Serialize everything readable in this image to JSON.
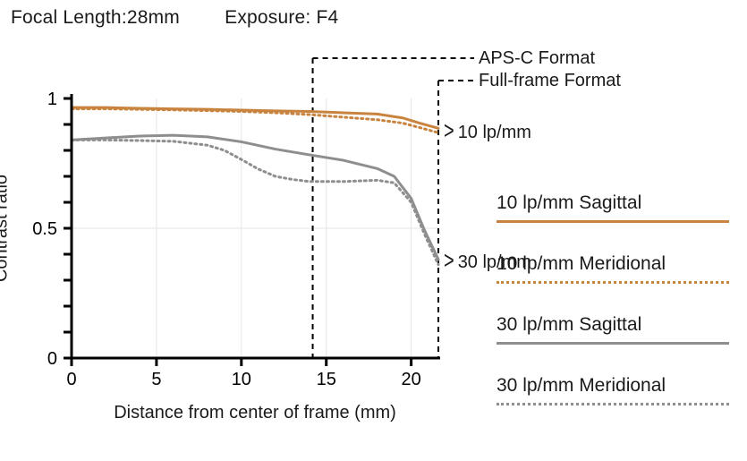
{
  "header": {
    "focal_length_label": "Focal Length:",
    "focal_length_value": "28mm",
    "exposure_label": "Exposure:",
    "exposure_value": "F4"
  },
  "chart": {
    "type": "line",
    "background_color": "#ffffff",
    "grid_color": "#e5e5e5",
    "axis_color": "#000000",
    "axis_width": 3,
    "tick_length": 9,
    "font_size_axis_labels": 20,
    "font_size_tick": 20,
    "x": {
      "label": "Distance from center of frame (mm)",
      "min": 0,
      "max": 21.6,
      "ticks": [
        0,
        5,
        10,
        15,
        20
      ],
      "grid": [
        5,
        10,
        15,
        20
      ]
    },
    "y": {
      "label": "Contrast ratio",
      "min": 0,
      "max": 1,
      "ticks": [
        0,
        0.5,
        1
      ],
      "minor_ticks": [
        0.1,
        0.2,
        0.3,
        0.4,
        0.6,
        0.7,
        0.8,
        0.9
      ]
    },
    "format_markers": {
      "apsc": {
        "x": 14.2,
        "label": "APS-C Format",
        "dash": "6,5",
        "color": "#000000"
      },
      "fullframe": {
        "x": 21.6,
        "label": "Full-frame Format",
        "dash": "6,5",
        "color": "#000000"
      }
    },
    "annotations": {
      "ten": {
        "label": "10 lp/mm",
        "at_x": 21.6,
        "at_y": 0.87,
        "arrow": ">"
      },
      "thirty": {
        "label": "30 lp/mm",
        "at_x": 21.6,
        "at_y": 0.37,
        "arrow": ">"
      }
    },
    "series": [
      {
        "id": "10_sagittal",
        "label": "10 lp/mm Sagittal",
        "color": "#c8843f",
        "width": 3,
        "dash": null,
        "data": [
          [
            0,
            0.965
          ],
          [
            2,
            0.965
          ],
          [
            4,
            0.962
          ],
          [
            6,
            0.96
          ],
          [
            8,
            0.958
          ],
          [
            10,
            0.955
          ],
          [
            12,
            0.952
          ],
          [
            14,
            0.95
          ],
          [
            16,
            0.945
          ],
          [
            18,
            0.94
          ],
          [
            19.5,
            0.925
          ],
          [
            20.5,
            0.905
          ],
          [
            21.6,
            0.885
          ]
        ]
      },
      {
        "id": "10_meridional",
        "label": "10 lp/mm Meridional",
        "color": "#c8843f",
        "width": 3,
        "dash": "2,4",
        "data": [
          [
            0,
            0.96
          ],
          [
            2,
            0.96
          ],
          [
            4,
            0.958
          ],
          [
            6,
            0.956
          ],
          [
            8,
            0.953
          ],
          [
            10,
            0.95
          ],
          [
            12,
            0.945
          ],
          [
            14,
            0.938
          ],
          [
            16,
            0.928
          ],
          [
            18,
            0.918
          ],
          [
            19.5,
            0.905
          ],
          [
            20.5,
            0.888
          ],
          [
            21.6,
            0.868
          ]
        ]
      },
      {
        "id": "30_sagittal",
        "label": "30 lp/mm Sagittal",
        "color": "#8e8e8e",
        "width": 3,
        "dash": null,
        "data": [
          [
            0,
            0.84
          ],
          [
            2,
            0.848
          ],
          [
            4,
            0.855
          ],
          [
            6,
            0.858
          ],
          [
            8,
            0.852
          ],
          [
            10,
            0.833
          ],
          [
            12,
            0.805
          ],
          [
            14,
            0.783
          ],
          [
            16,
            0.762
          ],
          [
            18,
            0.73
          ],
          [
            19,
            0.7
          ],
          [
            20,
            0.615
          ],
          [
            20.8,
            0.49
          ],
          [
            21.6,
            0.38
          ]
        ]
      },
      {
        "id": "30_meridional",
        "label": "30 lp/mm Meridional",
        "color": "#8e8e8e",
        "width": 3,
        "dash": "2,4",
        "data": [
          [
            0,
            0.84
          ],
          [
            2,
            0.84
          ],
          [
            4,
            0.838
          ],
          [
            6,
            0.835
          ],
          [
            8,
            0.82
          ],
          [
            9,
            0.8
          ],
          [
            10,
            0.765
          ],
          [
            11,
            0.728
          ],
          [
            12,
            0.7
          ],
          [
            13,
            0.688
          ],
          [
            14,
            0.68
          ],
          [
            16,
            0.68
          ],
          [
            18,
            0.685
          ],
          [
            19,
            0.675
          ],
          [
            20,
            0.6
          ],
          [
            20.8,
            0.475
          ],
          [
            21.6,
            0.36
          ]
        ]
      }
    ]
  },
  "legend": {
    "items": [
      {
        "label": "10 lp/mm Sagittal",
        "color": "#c8843f",
        "dash": "solid"
      },
      {
        "label": "10 lp/mm Meridional",
        "color": "#c8843f",
        "dash": "dotted"
      },
      {
        "label": "30 lp/mm Sagittal",
        "color": "#8e8e8e",
        "dash": "solid"
      },
      {
        "label": "30 lp/mm Meridional",
        "color": "#8e8e8e",
        "dash": "dotted"
      }
    ]
  }
}
